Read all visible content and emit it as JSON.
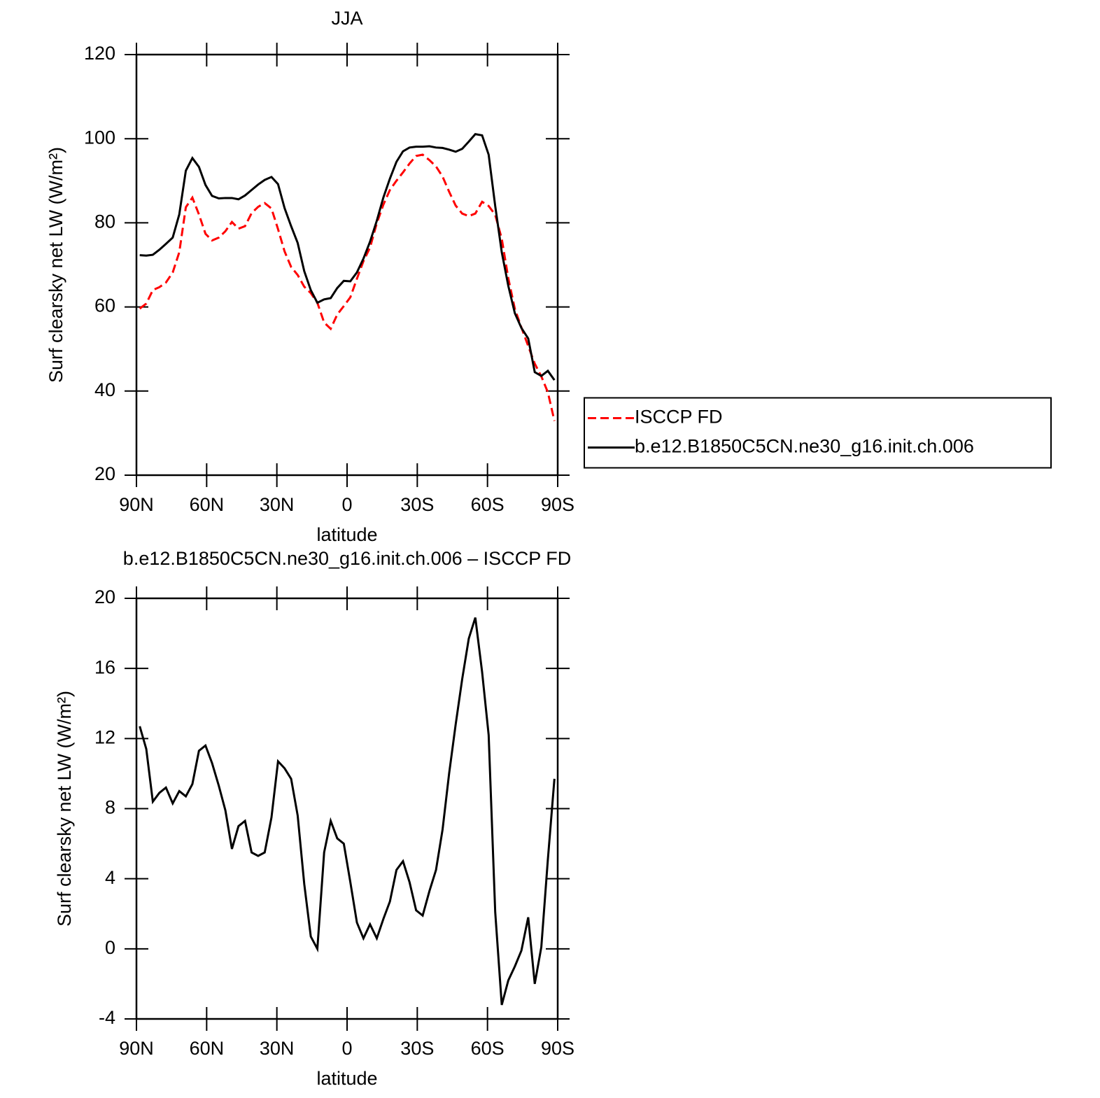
{
  "chart_data": [
    {
      "type": "line",
      "title": "JJA",
      "xlabel": "latitude",
      "ylabel": "Surf clearsky net LW (W/m²)",
      "x": [
        88.6,
        85.8,
        83.0,
        80.2,
        77.4,
        74.5,
        71.7,
        68.9,
        66.1,
        63.3,
        60.5,
        57.7,
        54.8,
        52.0,
        49.2,
        46.4,
        43.6,
        40.8,
        38.0,
        35.2,
        32.3,
        29.5,
        26.7,
        23.9,
        21.1,
        18.3,
        15.5,
        12.7,
        9.8,
        7.0,
        4.2,
        1.4,
        -1.4,
        -4.2,
        -7.0,
        -9.8,
        -12.7,
        -15.5,
        -18.3,
        -21.1,
        -23.9,
        -26.7,
        -29.5,
        -32.3,
        -35.2,
        -38.0,
        -40.8,
        -43.6,
        -46.4,
        -49.2,
        -52.0,
        -54.8,
        -57.7,
        -60.5,
        -63.3,
        -66.1,
        -68.9,
        -71.7,
        -74.5,
        -77.4,
        -80.2,
        -83.0,
        -85.8,
        -88.6
      ],
      "series": [
        {
          "name": "ISCCP FD",
          "color": "#ff0000",
          "style": "dashed",
          "values": [
            59.6,
            60.8,
            64.0,
            64.7,
            65.8,
            68.2,
            73.0,
            83.7,
            86.0,
            82.0,
            77.4,
            75.8,
            76.5,
            78.0,
            80.2,
            78.6,
            79.2,
            82.3,
            83.8,
            84.7,
            83.4,
            78.5,
            73.2,
            69.5,
            67.6,
            64.8,
            63.3,
            61.0,
            56.3,
            54.8,
            58.2,
            60.2,
            62.3,
            66.7,
            70.9,
            74.1,
            79.9,
            84.3,
            87.8,
            90.0,
            92.0,
            94.1,
            95.9,
            96.2,
            94.9,
            93.4,
            91.0,
            87.4,
            84.1,
            82.2,
            81.6,
            82.2,
            85.0,
            84.0,
            81.9,
            76.2,
            66.8,
            59.5,
            55.1,
            50.7,
            46.5,
            43.5,
            39.7,
            32.9
          ]
        },
        {
          "name": "b.e12.B1850C5CN.ne30_g16.init.ch.006",
          "color": "#000000",
          "style": "solid",
          "values": [
            72.3,
            72.2,
            72.4,
            73.6,
            75.0,
            76.5,
            82.0,
            92.4,
            95.4,
            93.3,
            89.0,
            86.4,
            85.8,
            85.9,
            85.9,
            85.6,
            86.5,
            87.8,
            89.1,
            90.2,
            90.9,
            89.2,
            83.5,
            79.2,
            75.2,
            68.5,
            64.0,
            61.0,
            61.8,
            62.1,
            64.5,
            66.2,
            66.1,
            68.2,
            71.5,
            75.5,
            80.5,
            86.0,
            90.5,
            94.5,
            97.0,
            97.9,
            98.1,
            98.1,
            98.2,
            97.9,
            97.8,
            97.4,
            96.9,
            97.6,
            99.3,
            101.1,
            100.8,
            96.2,
            84.0,
            73.0,
            65.0,
            58.5,
            55.0,
            52.5,
            44.5,
            43.6,
            44.8,
            42.6
          ]
        }
      ],
      "xlim": [
        90,
        -90
      ],
      "xticks": [
        {
          "value": 90,
          "label": "90N"
        },
        {
          "value": 60,
          "label": "60N"
        },
        {
          "value": 30,
          "label": "30N"
        },
        0,
        {
          "value": -30,
          "label": "30S"
        },
        {
          "value": -60,
          "label": "60S"
        },
        {
          "value": -90,
          "label": "90S"
        }
      ],
      "ylim": [
        20,
        120
      ],
      "yticks": [
        20,
        40,
        60,
        80,
        100,
        120
      ],
      "legend": "right"
    },
    {
      "type": "line",
      "title": "b.e12.B1850C5CN.ne30_g16.init.ch.006 – ISCCP FD",
      "xlabel": "latitude",
      "ylabel": "Surf clearsky net LW (W/m²)",
      "x": [
        88.6,
        85.8,
        83.0,
        80.2,
        77.4,
        74.5,
        71.7,
        68.9,
        66.1,
        63.3,
        60.5,
        57.7,
        54.8,
        52.0,
        49.2,
        46.4,
        43.6,
        40.8,
        38.0,
        35.2,
        32.3,
        29.5,
        26.7,
        23.9,
        21.1,
        18.3,
        15.5,
        12.7,
        9.8,
        7.0,
        4.2,
        1.4,
        -1.4,
        -4.2,
        -7.0,
        -9.8,
        -12.7,
        -15.5,
        -18.3,
        -21.1,
        -23.9,
        -26.7,
        -29.5,
        -32.3,
        -35.2,
        -38.0,
        -40.8,
        -43.6,
        -46.4,
        -49.2,
        -52.0,
        -54.8,
        -57.7,
        -60.5,
        -63.3,
        -66.1,
        -68.9,
        -71.7,
        -74.5,
        -77.4,
        -80.2,
        -83.0,
        -85.8,
        -88.6
      ],
      "series": [
        {
          "color": "#000000",
          "style": "solid",
          "values": [
            12.7,
            11.4,
            8.4,
            8.9,
            9.2,
            8.3,
            9.0,
            8.7,
            9.4,
            11.3,
            11.6,
            10.6,
            9.3,
            7.9,
            5.7,
            7.0,
            7.3,
            5.5,
            5.3,
            5.5,
            7.5,
            10.7,
            10.3,
            9.7,
            7.6,
            3.7,
            0.7,
            0.0,
            5.5,
            7.3,
            6.3,
            6.0,
            3.8,
            1.5,
            0.6,
            1.4,
            0.6,
            1.7,
            2.7,
            4.5,
            5.0,
            3.8,
            2.2,
            1.9,
            3.3,
            4.5,
            6.8,
            10.0,
            12.8,
            15.4,
            17.7,
            18.9,
            15.8,
            12.2,
            2.1,
            -3.2,
            -1.8,
            -1.0,
            -0.1,
            1.8,
            -2.0,
            0.1,
            5.1,
            9.7
          ]
        }
      ],
      "xlim": [
        90,
        -90
      ],
      "xticks": [
        {
          "value": 90,
          "label": "90N"
        },
        {
          "value": 60,
          "label": "60N"
        },
        {
          "value": 30,
          "label": "30N"
        },
        0,
        {
          "value": -30,
          "label": "30S"
        },
        {
          "value": -60,
          "label": "60S"
        },
        {
          "value": -90,
          "label": "90S"
        }
      ],
      "ylim": [
        -4,
        20
      ],
      "yticks": [
        -4,
        0,
        4,
        8,
        12,
        16,
        20
      ]
    }
  ]
}
